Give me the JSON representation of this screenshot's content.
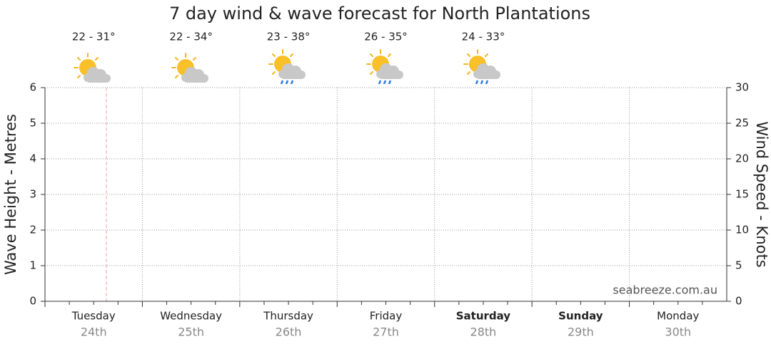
{
  "chart_data": {
    "type": "line",
    "title": "7 day wind & wave forecast for North Plantations",
    "temperatures": [
      "22 - 31°",
      "22 - 34°",
      "23 - 38°",
      "26 - 35°",
      "24 - 33°"
    ],
    "categories": [
      "Tuesday",
      "Wednesday",
      "Thursday",
      "Friday",
      "Saturday",
      "Sunday",
      "Monday"
    ],
    "dates": [
      "24th",
      "25th",
      "26th",
      "27th",
      "28th",
      "29th",
      "30th"
    ],
    "bold_categories": [
      false,
      false,
      false,
      false,
      true,
      true,
      false
    ],
    "ylabel": "Wave Height - Metres",
    "y2label": "Wind Speed - Knots",
    "ylim": [
      0,
      6
    ],
    "yticks": [
      0,
      1,
      2,
      3,
      4,
      5,
      6
    ],
    "y2lim": [
      0,
      30
    ],
    "y2ticks": [
      0,
      5,
      10,
      15,
      20,
      25,
      30
    ],
    "grid": true,
    "watermark": "seabreeze.com.au"
  }
}
